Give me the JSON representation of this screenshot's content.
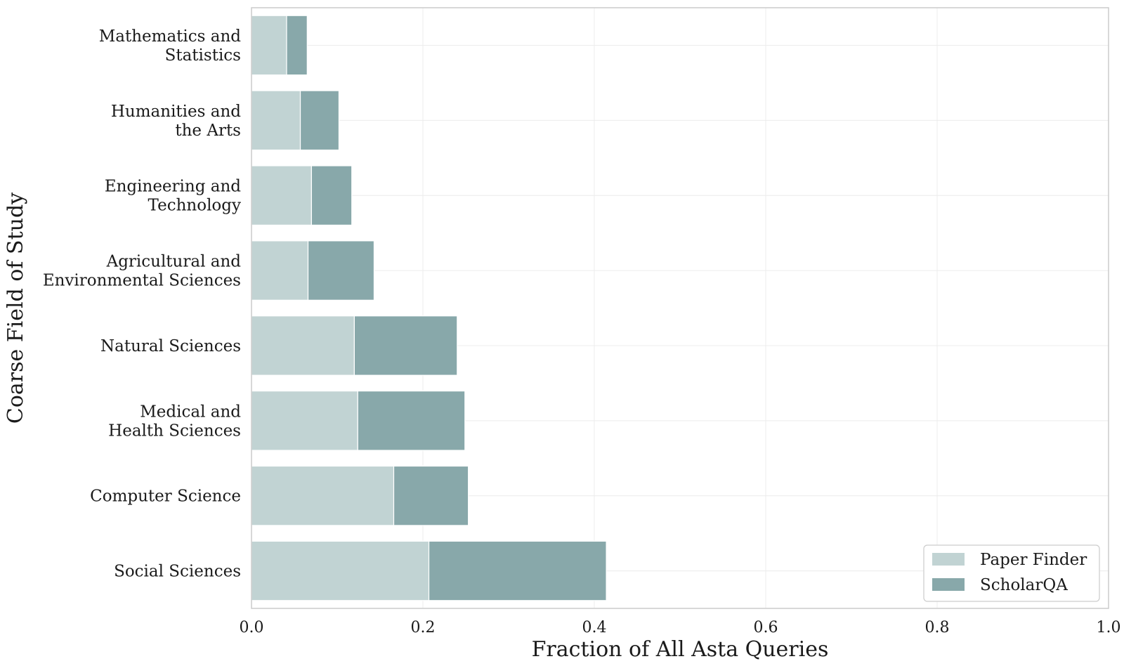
{
  "chart_data": {
    "type": "bar",
    "orientation": "horizontal",
    "stacked": true,
    "categories": [
      [
        "Mathematics and",
        "Statistics"
      ],
      [
        "Humanities and",
        "the Arts"
      ],
      [
        "Engineering and",
        "Technology"
      ],
      [
        "Agricultural and",
        "Environmental Sciences"
      ],
      [
        "Natural Sciences"
      ],
      [
        "Medical and",
        "Health Sciences"
      ],
      [
        "Computer Science"
      ],
      [
        "Social Sciences"
      ]
    ],
    "series": [
      {
        "name": "Paper Finder",
        "color": "#c1d3d3",
        "values": [
          0.041,
          0.057,
          0.07,
          0.066,
          0.12,
          0.124,
          0.166,
          0.207
        ]
      },
      {
        "name": "ScholarQA",
        "color": "#88a8aa",
        "values": [
          0.024,
          0.045,
          0.047,
          0.077,
          0.12,
          0.125,
          0.087,
          0.207
        ]
      }
    ],
    "xlabel": "Fraction of All Asta Queries",
    "ylabel": "Coarse Field of Study",
    "xlim": [
      0,
      1.0
    ],
    "xticks": [
      "0.0",
      "0.2",
      "0.4",
      "0.6",
      "0.8",
      "1.0"
    ],
    "grid": true,
    "legend_position": "lower-right"
  }
}
